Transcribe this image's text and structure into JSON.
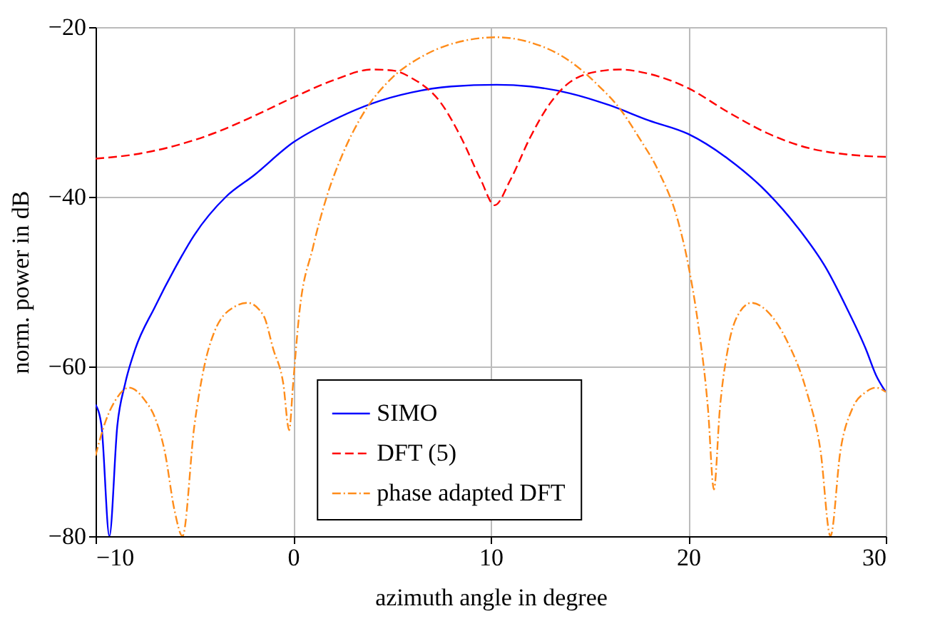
{
  "chart_data": {
    "type": "line",
    "xlabel": "azimuth angle in degree",
    "ylabel": "norm. power in dB",
    "xlim": [
      -10,
      30
    ],
    "xticks": [
      -10,
      0,
      10,
      20,
      30
    ],
    "ylim": [
      -80,
      -20
    ],
    "yticks": [
      -80,
      -60,
      -40,
      -20
    ],
    "grid": true,
    "legend": "bottom",
    "marker": "none",
    "series": [
      {
        "name": "SIMO",
        "color": "#0000ff",
        "line_style": "solid",
        "x": [
          -10,
          -9.7,
          -9.3,
          -8.9,
          -8.5,
          -8,
          -7,
          -6,
          -5,
          -3.4,
          -2,
          0,
          2,
          4,
          6,
          8,
          10.3,
          12,
          14,
          16,
          18,
          20,
          22,
          24,
          25.5,
          27,
          28,
          29,
          29.5,
          30
        ],
        "values": [
          -64.5,
          -67,
          -80,
          -67,
          -62,
          -58,
          -53,
          -48.5,
          -44.5,
          -40,
          -37.5,
          -33.6,
          -31,
          -29,
          -27.7,
          -27,
          -26.8,
          -27,
          -27.8,
          -29.2,
          -31,
          -32.6,
          -35.5,
          -39.5,
          -43.5,
          -48.5,
          -53,
          -58,
          -61,
          -63
        ]
      },
      {
        "name": "DFT (5)",
        "color": "#ff0000",
        "line_style": "dashed",
        "x": [
          -10,
          -8,
          -6,
          -4,
          -2,
          0,
          2,
          4,
          5,
          6,
          7.5,
          8.5,
          9.5,
          10.2,
          11,
          12,
          13,
          14,
          15.5,
          16.5,
          18,
          20,
          22,
          24,
          26,
          28,
          30
        ],
        "values": [
          -35.5,
          -35,
          -34,
          -32.5,
          -30.5,
          -28.3,
          -26.3,
          -25,
          -25.1,
          -26,
          -29,
          -33,
          -38,
          -41,
          -38,
          -33,
          -29,
          -26.5,
          -25.2,
          -25,
          -25.5,
          -27.2,
          -30,
          -32.5,
          -34.2,
          -35,
          -35.3
        ]
      },
      {
        "name": "phase adapted DFT",
        "color": "#ff8c1a",
        "line_style": "dashdot",
        "x": [
          -10,
          -9.5,
          -9,
          -8.3,
          -7.5,
          -7,
          -6.5,
          -6,
          -5.6,
          -5,
          -4.5,
          -4,
          -3,
          -2.3,
          -1.5,
          -1,
          -0.5,
          -0.2,
          0,
          0.3,
          1,
          1.7,
          2.5,
          3.6,
          5,
          6.5,
          8,
          10.3,
          12,
          14,
          15.5,
          16.5,
          17.5,
          18.5,
          19.5,
          20,
          20.5,
          21,
          21.3,
          21.6,
          22,
          22.5,
          23.2,
          24,
          25,
          26,
          26.7,
          27.2,
          27.7,
          28.3,
          29,
          29.5,
          30
        ],
        "values": [
          -70.5,
          -66.5,
          -64,
          -62.5,
          -64,
          -66,
          -70,
          -77,
          -80,
          -67,
          -60,
          -56,
          -53,
          -52.5,
          -54,
          -58,
          -62,
          -67.5,
          -62,
          -54,
          -46,
          -40,
          -35,
          -30,
          -26,
          -23.5,
          -22,
          -21.2,
          -21.8,
          -24,
          -27,
          -29.5,
          -33,
          -37,
          -43,
          -48,
          -55,
          -65,
          -74.5,
          -65,
          -58,
          -54,
          -52.5,
          -53.5,
          -57,
          -63,
          -70,
          -80,
          -70,
          -65,
          -63,
          -62.5,
          -63
        ]
      }
    ]
  }
}
